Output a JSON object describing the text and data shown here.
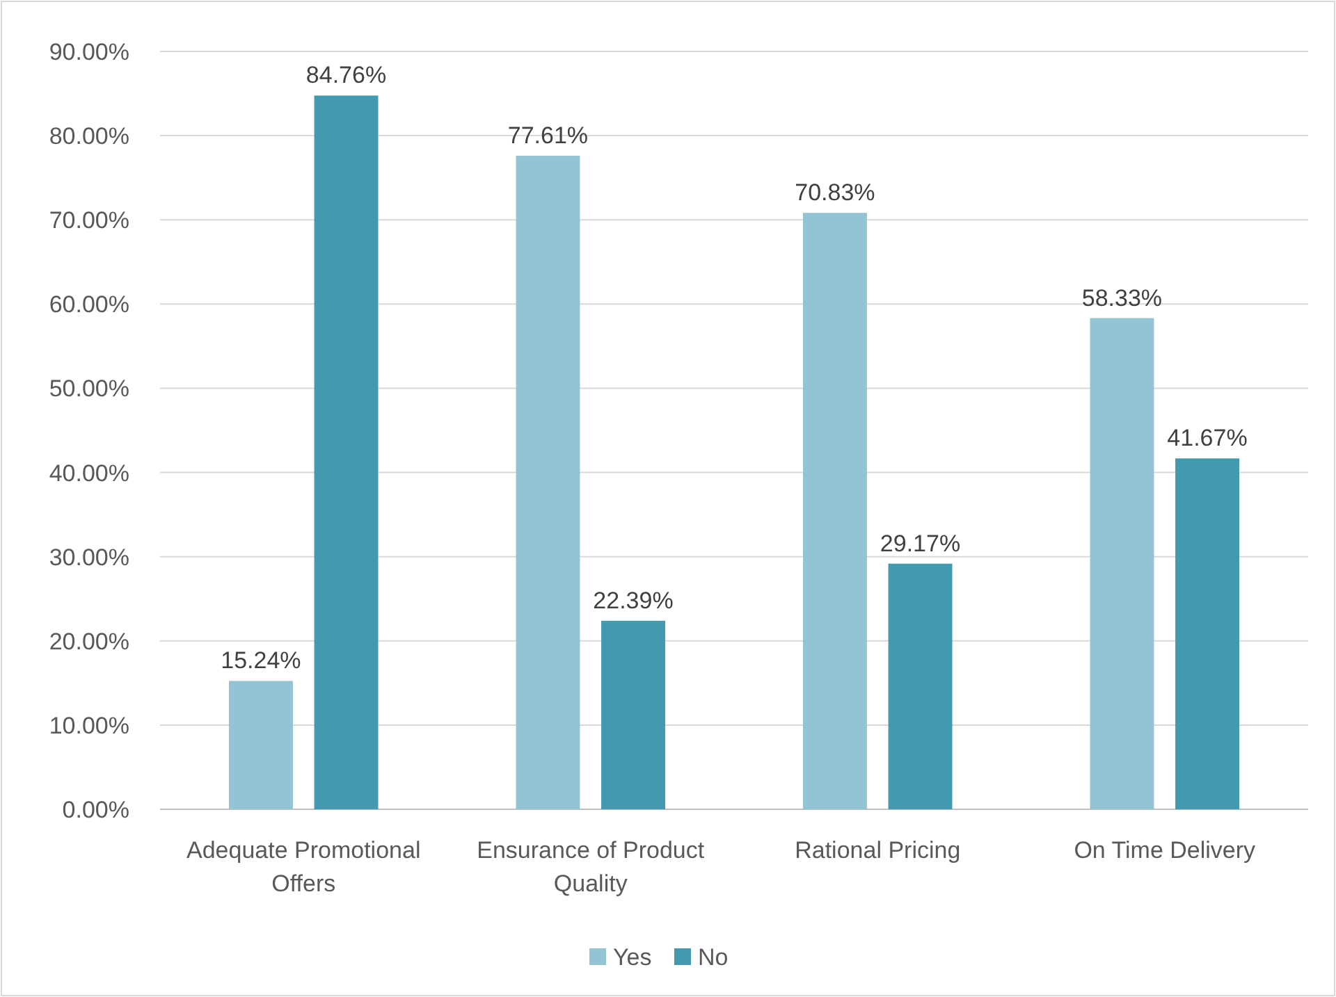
{
  "chart_data": {
    "type": "bar",
    "categories": [
      "Adequate Promotional Offers",
      "Ensurance of Product Quality",
      "Rational Pricing",
      "On Time Delivery"
    ],
    "series": [
      {
        "name": "Yes",
        "color": "#93c4d4",
        "values": [
          15.24,
          77.61,
          70.83,
          58.33
        ],
        "value_labels": [
          "15.24%",
          "77.61%",
          "70.83%",
          "58.33%"
        ]
      },
      {
        "name": "No",
        "color": "#4299b0",
        "values": [
          84.76,
          22.39,
          29.17,
          41.67
        ],
        "value_labels": [
          "84.76%",
          "22.39%",
          "29.17%",
          "41.67%"
        ]
      }
    ],
    "ylim": [
      0,
      90
    ],
    "yticks": [
      {
        "value": 0,
        "label": "0.00%"
      },
      {
        "value": 10,
        "label": "10.00%"
      },
      {
        "value": 20,
        "label": "20.00%"
      },
      {
        "value": 30,
        "label": "30.00%"
      },
      {
        "value": 40,
        "label": "40.00%"
      },
      {
        "value": 50,
        "label": "50.00%"
      },
      {
        "value": 60,
        "label": "60.00%"
      },
      {
        "value": 70,
        "label": "70.00%"
      },
      {
        "value": 80,
        "label": "80.00%"
      },
      {
        "value": 90,
        "label": "90.00%"
      }
    ],
    "grid": "y",
    "legend": "bottom"
  }
}
